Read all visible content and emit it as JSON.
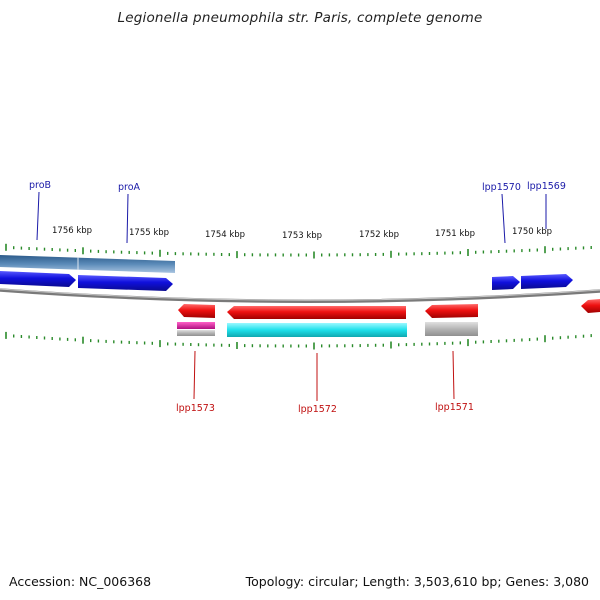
{
  "title": "Legionella pneumophila str. Paris, complete genome",
  "footer": {
    "accession": "Accession: NC_006368",
    "summary": "Topology: circular; Length: 3,503,610 bp; Genes: 3,080"
  },
  "colors": {
    "forward_gene": "#1010dd",
    "reverse_gene": "#ee1111",
    "operon_blue": "#4a78a8",
    "cyan": "#20e0ea",
    "magenta": "#e020a0",
    "grey": "#b4b4b4",
    "ticks": "#2a8a2a",
    "backbone": "#7a7a7a"
  },
  "ticks": {
    "labels": [
      "1756 kbp",
      "1755 kbp",
      "1754 kbp",
      "1753 kbp",
      "1752 kbp",
      "1751 kbp",
      "1750 kbp"
    ]
  },
  "genes": {
    "forward": [
      {
        "name": "proB"
      },
      {
        "name": "proA"
      },
      {
        "name": "lpp1570"
      },
      {
        "name": "lpp1569"
      }
    ],
    "reverse": [
      {
        "name": "lpp1573"
      },
      {
        "name": "lpp1572"
      },
      {
        "name": "lpp1571"
      }
    ]
  }
}
